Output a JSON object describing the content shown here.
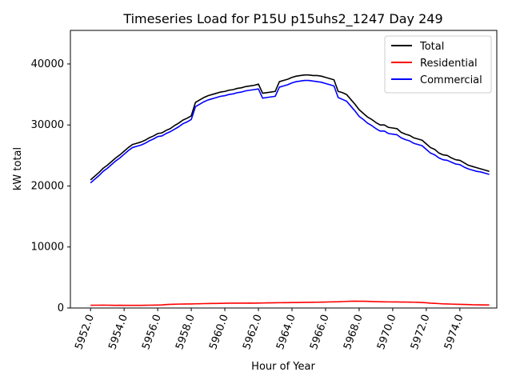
{
  "chart_data": {
    "type": "line",
    "title": "Timeseries Load for P15U p15uhs2_1247  Day 249",
    "xlabel": "Hour of Year",
    "ylabel": "kW total",
    "xlim": [
      5950.8,
      5976.2
    ],
    "ylim": [
      0,
      45500
    ],
    "xticks": [
      5952,
      5954,
      5956,
      5958,
      5960,
      5962,
      5964,
      5966,
      5968,
      5970,
      5972,
      5974
    ],
    "xtick_labels": [
      "5952.0",
      "5954.0",
      "5956.0",
      "5958.0",
      "5960.0",
      "5962.0",
      "5964.0",
      "5966.0",
      "5968.0",
      "5970.0",
      "5972.0",
      "5974.0"
    ],
    "yticks": [
      0,
      10000,
      20000,
      30000,
      40000
    ],
    "ytick_labels": [
      "0",
      "10000",
      "20000",
      "30000",
      "40000"
    ],
    "legend_position": "top-right",
    "x": [
      5952.0,
      5952.25,
      5952.5,
      5952.75,
      5953.0,
      5953.25,
      5953.5,
      5953.75,
      5954.0,
      5954.25,
      5954.5,
      5954.75,
      5955.0,
      5955.25,
      5955.5,
      5955.75,
      5956.0,
      5956.25,
      5956.5,
      5956.75,
      5957.0,
      5957.25,
      5957.5,
      5957.75,
      5958.0,
      5958.25,
      5958.5,
      5958.75,
      5959.0,
      5959.25,
      5959.5,
      5959.75,
      5960.0,
      5960.25,
      5960.5,
      5960.75,
      5961.0,
      5961.25,
      5961.5,
      5961.75,
      5962.0,
      5962.25,
      5962.5,
      5962.75,
      5963.0,
      5963.25,
      5963.5,
      5963.75,
      5964.0,
      5964.25,
      5964.5,
      5964.75,
      5965.0,
      5965.25,
      5965.5,
      5965.75,
      5966.0,
      5966.25,
      5966.5,
      5966.75,
      5967.0,
      5967.25,
      5967.5,
      5967.75,
      5968.0,
      5968.25,
      5968.5,
      5968.75,
      5969.0,
      5969.25,
      5969.5,
      5969.75,
      5970.0,
      5970.25,
      5970.5,
      5970.75,
      5971.0,
      5971.25,
      5971.5,
      5971.75,
      5972.0,
      5972.25,
      5972.5,
      5972.75,
      5973.0,
      5973.25,
      5973.5,
      5973.75,
      5974.0,
      5974.25,
      5974.5,
      5974.75,
      5975.0,
      5975.25,
      5975.5,
      5975.75
    ],
    "series": [
      {
        "name": "Total",
        "color": "#000000",
        "values": [
          21000,
          21600,
          22200,
          22900,
          23400,
          24000,
          24600,
          25100,
          25700,
          26300,
          26800,
          27000,
          27200,
          27500,
          27900,
          28200,
          28600,
          28700,
          29100,
          29400,
          29900,
          30300,
          30800,
          31100,
          31500,
          33700,
          34100,
          34500,
          34800,
          35000,
          35200,
          35400,
          35500,
          35700,
          35800,
          36000,
          36100,
          36300,
          36400,
          36500,
          36700,
          35200,
          35300,
          35400,
          35500,
          37100,
          37300,
          37500,
          37800,
          38000,
          38100,
          38200,
          38200,
          38100,
          38100,
          38000,
          37800,
          37600,
          37400,
          35500,
          35300,
          35000,
          34200,
          33400,
          32500,
          31900,
          31300,
          30900,
          30400,
          30000,
          30000,
          29600,
          29500,
          29400,
          28800,
          28500,
          28300,
          27900,
          27700,
          27500,
          26900,
          26300,
          26000,
          25400,
          25100,
          25000,
          24600,
          24300,
          24200,
          23800,
          23400,
          23200,
          23000,
          22800,
          22600,
          22400
        ]
      },
      {
        "name": "Residential",
        "color": "#ff0000",
        "values": [
          450,
          460,
          460,
          470,
          460,
          450,
          440,
          450,
          440,
          430,
          430,
          430,
          440,
          450,
          460,
          470,
          480,
          500,
          560,
          600,
          620,
          640,
          650,
          660,
          670,
          690,
          700,
          720,
          730,
          740,
          750,
          760,
          780,
          790,
          800,
          800,
          790,
          800,
          810,
          800,
          810,
          820,
          840,
          850,
          860,
          870,
          880,
          880,
          890,
          900,
          910,
          920,
          930,
          940,
          950,
          960,
          980,
          1000,
          1010,
          1020,
          1050,
          1080,
          1100,
          1120,
          1110,
          1100,
          1090,
          1060,
          1040,
          1030,
          1010,
          1000,
          990,
          990,
          980,
          970,
          960,
          950,
          930,
          900,
          860,
          800,
          760,
          720,
          680,
          660,
          640,
          620,
          600,
          580,
          560,
          530,
          520,
          510,
          500,
          500
        ]
      },
      {
        "name": "Commercial",
        "color": "#0000ff",
        "values": [
          20500,
          21100,
          21700,
          22400,
          22900,
          23500,
          24100,
          24600,
          25200,
          25800,
          26300,
          26500,
          26700,
          27000,
          27400,
          27700,
          28100,
          28200,
          28600,
          28900,
          29300,
          29700,
          30200,
          30500,
          30900,
          33000,
          33400,
          33800,
          34100,
          34300,
          34500,
          34700,
          34800,
          35000,
          35100,
          35300,
          35400,
          35600,
          35700,
          35800,
          35900,
          34400,
          34500,
          34600,
          34700,
          36200,
          36400,
          36600,
          36900,
          37100,
          37200,
          37300,
          37300,
          37200,
          37100,
          37000,
          36800,
          36600,
          36400,
          34500,
          34200,
          33900,
          33100,
          32300,
          31400,
          30900,
          30300,
          29900,
          29400,
          29000,
          29000,
          28600,
          28500,
          28400,
          27900,
          27600,
          27400,
          27000,
          26800,
          26600,
          26000,
          25400,
          25100,
          24600,
          24300,
          24200,
          23900,
          23600,
          23500,
          23100,
          22800,
          22600,
          22400,
          22300,
          22100,
          21900
        ]
      }
    ]
  }
}
